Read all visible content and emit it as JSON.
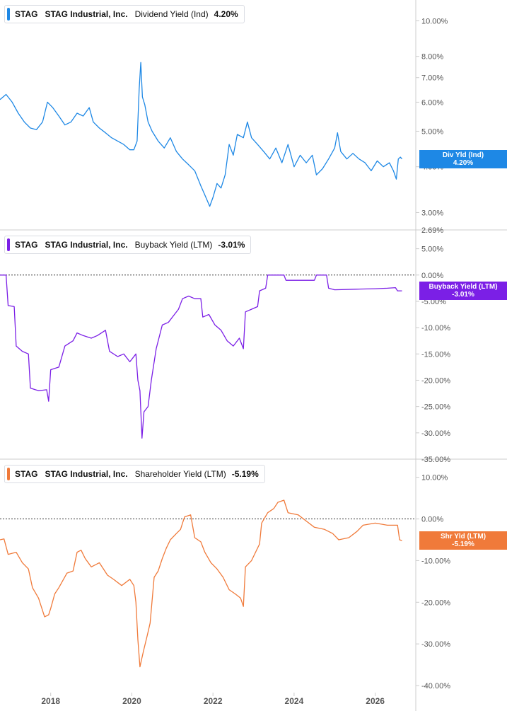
{
  "colors": {
    "dividend": "#1e88e5",
    "buyback": "#7b1fe6",
    "shareholder": "#f07a3a",
    "axis_text": "#555555",
    "divider": "#cccccc"
  },
  "x_axis": {
    "labels": [
      "2018",
      "2020",
      "2022",
      "2024",
      "2026"
    ],
    "range": [
      2016.75,
      2027.0
    ]
  },
  "chart_data": [
    {
      "type": "line",
      "name": "dividend",
      "ticker": "STAG",
      "company": "STAG Industrial, Inc.",
      "metric": "Dividend Yield (Ind)",
      "value_label": "4.20%",
      "flag_name": "Div Yld (Ind)",
      "flag_value": "4.20%",
      "scale": "log",
      "ylim": [
        2.69,
        11.0
      ],
      "y_ticks": [
        {
          "v": 10.0,
          "label": "10.00%"
        },
        {
          "v": 8.0,
          "label": "8.00%"
        },
        {
          "v": 7.0,
          "label": "7.00%"
        },
        {
          "v": 6.0,
          "label": "6.00%"
        },
        {
          "v": 5.0,
          "label": "5.00%"
        },
        {
          "v": 4.0,
          "label": "4.00%"
        },
        {
          "v": 3.0,
          "label": "3.00%"
        },
        {
          "v": 2.69,
          "label": "2.69%"
        }
      ],
      "points": [
        [
          2016.75,
          6.1
        ],
        [
          2016.9,
          6.3
        ],
        [
          2017.05,
          6.0
        ],
        [
          2017.2,
          5.6
        ],
        [
          2017.35,
          5.3
        ],
        [
          2017.5,
          5.1
        ],
        [
          2017.65,
          5.05
        ],
        [
          2017.8,
          5.3
        ],
        [
          2017.92,
          6.0
        ],
        [
          2018.05,
          5.8
        ],
        [
          2018.2,
          5.5
        ],
        [
          2018.35,
          5.2
        ],
        [
          2018.5,
          5.3
        ],
        [
          2018.65,
          5.6
        ],
        [
          2018.8,
          5.5
        ],
        [
          2018.95,
          5.8
        ],
        [
          2019.05,
          5.3
        ],
        [
          2019.2,
          5.1
        ],
        [
          2019.35,
          4.95
        ],
        [
          2019.5,
          4.8
        ],
        [
          2019.65,
          4.7
        ],
        [
          2019.8,
          4.6
        ],
        [
          2019.95,
          4.45
        ],
        [
          2020.05,
          4.45
        ],
        [
          2020.13,
          4.7
        ],
        [
          2020.18,
          6.5
        ],
        [
          2020.22,
          7.7
        ],
        [
          2020.26,
          6.2
        ],
        [
          2020.32,
          5.9
        ],
        [
          2020.4,
          5.3
        ],
        [
          2020.5,
          5.0
        ],
        [
          2020.65,
          4.7
        ],
        [
          2020.8,
          4.5
        ],
        [
          2020.95,
          4.8
        ],
        [
          2021.1,
          4.4
        ],
        [
          2021.25,
          4.2
        ],
        [
          2021.4,
          4.05
        ],
        [
          2021.55,
          3.9
        ],
        [
          2021.7,
          3.55
        ],
        [
          2021.8,
          3.35
        ],
        [
          2021.92,
          3.12
        ],
        [
          2022.0,
          3.3
        ],
        [
          2022.1,
          3.6
        ],
        [
          2022.2,
          3.5
        ],
        [
          2022.3,
          3.8
        ],
        [
          2022.4,
          4.6
        ],
        [
          2022.5,
          4.3
        ],
        [
          2022.6,
          4.9
        ],
        [
          2022.75,
          4.8
        ],
        [
          2022.85,
          5.3
        ],
        [
          2022.95,
          4.8
        ],
        [
          2023.1,
          4.6
        ],
        [
          2023.25,
          4.4
        ],
        [
          2023.4,
          4.2
        ],
        [
          2023.55,
          4.5
        ],
        [
          2023.7,
          4.1
        ],
        [
          2023.85,
          4.6
        ],
        [
          2024.0,
          4.0
        ],
        [
          2024.15,
          4.3
        ],
        [
          2024.3,
          4.1
        ],
        [
          2024.45,
          4.3
        ],
        [
          2024.55,
          3.8
        ],
        [
          2024.7,
          3.95
        ],
        [
          2024.85,
          4.2
        ],
        [
          2025.0,
          4.5
        ],
        [
          2025.07,
          4.95
        ],
        [
          2025.15,
          4.4
        ],
        [
          2025.3,
          4.2
        ],
        [
          2025.45,
          4.35
        ],
        [
          2025.6,
          4.2
        ],
        [
          2025.75,
          4.1
        ],
        [
          2025.9,
          3.9
        ],
        [
          2026.05,
          4.15
        ],
        [
          2026.2,
          4.0
        ],
        [
          2026.35,
          4.1
        ],
        [
          2026.45,
          3.9
        ],
        [
          2026.52,
          3.7
        ],
        [
          2026.57,
          4.2
        ],
        [
          2026.62,
          4.25
        ],
        [
          2026.66,
          4.2
        ]
      ]
    },
    {
      "type": "line",
      "name": "buyback",
      "ticker": "STAG",
      "company": "STAG Industrial, Inc.",
      "metric": "Buyback Yield (LTM)",
      "value_label": "-3.01%",
      "flag_name": "Buyback Yield (LTM)",
      "flag_value": "-3.01%",
      "scale": "linear",
      "ylim": [
        -35.0,
        7.5
      ],
      "zero_line": true,
      "y_ticks": [
        {
          "v": 5.0,
          "label": "5.00%"
        },
        {
          "v": 0.0,
          "label": "0.00%"
        },
        {
          "v": -5.0,
          "label": "-5.00%"
        },
        {
          "v": -10.0,
          "label": "-10.00%"
        },
        {
          "v": -15.0,
          "label": "-15.00%"
        },
        {
          "v": -20.0,
          "label": "-20.00%"
        },
        {
          "v": -25.0,
          "label": "-25.00%"
        },
        {
          "v": -30.0,
          "label": "-30.00%"
        },
        {
          "v": -35.0,
          "label": "-35.00%"
        }
      ],
      "points": [
        [
          2016.75,
          0.0
        ],
        [
          2016.9,
          0.0
        ],
        [
          2016.95,
          -5.8
        ],
        [
          2017.1,
          -6.0
        ],
        [
          2017.15,
          -13.5
        ],
        [
          2017.3,
          -14.5
        ],
        [
          2017.45,
          -15.0
        ],
        [
          2017.5,
          -21.5
        ],
        [
          2017.7,
          -22.0
        ],
        [
          2017.9,
          -21.8
        ],
        [
          2017.95,
          -24.0
        ],
        [
          2018.0,
          -18.0
        ],
        [
          2018.2,
          -17.5
        ],
        [
          2018.35,
          -13.5
        ],
        [
          2018.55,
          -12.5
        ],
        [
          2018.65,
          -11.0
        ],
        [
          2018.8,
          -11.5
        ],
        [
          2019.0,
          -12.0
        ],
        [
          2019.15,
          -11.5
        ],
        [
          2019.35,
          -10.5
        ],
        [
          2019.45,
          -14.5
        ],
        [
          2019.65,
          -15.5
        ],
        [
          2019.8,
          -15.0
        ],
        [
          2019.95,
          -16.5
        ],
        [
          2020.1,
          -15.0
        ],
        [
          2020.15,
          -20.0
        ],
        [
          2020.2,
          -22.0
        ],
        [
          2020.25,
          -31.0
        ],
        [
          2020.3,
          -26.0
        ],
        [
          2020.4,
          -25.0
        ],
        [
          2020.48,
          -20.0
        ],
        [
          2020.6,
          -14.0
        ],
        [
          2020.75,
          -9.5
        ],
        [
          2020.9,
          -9.0
        ],
        [
          2021.05,
          -7.5
        ],
        [
          2021.15,
          -6.5
        ],
        [
          2021.25,
          -4.5
        ],
        [
          2021.4,
          -4.0
        ],
        [
          2021.55,
          -4.5
        ],
        [
          2021.7,
          -4.5
        ],
        [
          2021.75,
          -8.0
        ],
        [
          2021.9,
          -7.5
        ],
        [
          2022.05,
          -9.5
        ],
        [
          2022.2,
          -10.5
        ],
        [
          2022.35,
          -12.5
        ],
        [
          2022.5,
          -13.5
        ],
        [
          2022.65,
          -12.0
        ],
        [
          2022.75,
          -14.0
        ],
        [
          2022.8,
          -7.0
        ],
        [
          2022.95,
          -6.5
        ],
        [
          2023.1,
          -6.0
        ],
        [
          2023.15,
          -3.0
        ],
        [
          2023.3,
          -2.5
        ],
        [
          2023.35,
          0.0
        ],
        [
          2023.6,
          0.0
        ],
        [
          2023.75,
          0.0
        ],
        [
          2023.8,
          -1.0
        ],
        [
          2024.2,
          -1.0
        ],
        [
          2024.5,
          -1.0
        ],
        [
          2024.55,
          0.0
        ],
        [
          2024.8,
          0.0
        ],
        [
          2024.85,
          -2.5
        ],
        [
          2025.0,
          -2.8
        ],
        [
          2025.5,
          -2.7
        ],
        [
          2026.0,
          -2.6
        ],
        [
          2026.3,
          -2.5
        ],
        [
          2026.5,
          -2.4
        ],
        [
          2026.55,
          -3.0
        ],
        [
          2026.66,
          -3.01
        ]
      ]
    },
    {
      "type": "line",
      "name": "shareholder",
      "ticker": "STAG",
      "company": "STAG Industrial, Inc.",
      "metric": "Shareholder Yield (LTM)",
      "value_label": "-5.19%",
      "flag_name": "Shr Yld (LTM)",
      "flag_value": "-5.19%",
      "scale": "linear",
      "ylim": [
        -40.5,
        13.0
      ],
      "zero_line": true,
      "y_ticks": [
        {
          "v": 10.0,
          "label": "10.00%"
        },
        {
          "v": 0.0,
          "label": "0.00%"
        },
        {
          "v": -10.0,
          "label": "-10.00%"
        },
        {
          "v": -20.0,
          "label": "-20.00%"
        },
        {
          "v": -30.0,
          "label": "-30.00%"
        },
        {
          "v": -40.0,
          "label": "-40.00%"
        }
      ],
      "points": [
        [
          2016.75,
          -5.0
        ],
        [
          2016.85,
          -4.8
        ],
        [
          2016.95,
          -8.5
        ],
        [
          2017.15,
          -8.0
        ],
        [
          2017.3,
          -10.5
        ],
        [
          2017.45,
          -12.0
        ],
        [
          2017.55,
          -16.5
        ],
        [
          2017.7,
          -19.0
        ],
        [
          2017.8,
          -22.0
        ],
        [
          2017.85,
          -23.5
        ],
        [
          2017.95,
          -23.0
        ],
        [
          2018.0,
          -21.5
        ],
        [
          2018.1,
          -18.0
        ],
        [
          2018.2,
          -16.5
        ],
        [
          2018.4,
          -13.0
        ],
        [
          2018.55,
          -12.5
        ],
        [
          2018.65,
          -8.0
        ],
        [
          2018.75,
          -7.5
        ],
        [
          2018.85,
          -9.5
        ],
        [
          2019.0,
          -11.5
        ],
        [
          2019.2,
          -10.5
        ],
        [
          2019.4,
          -13.5
        ],
        [
          2019.55,
          -14.5
        ],
        [
          2019.75,
          -16.0
        ],
        [
          2019.95,
          -14.5
        ],
        [
          2020.05,
          -16.0
        ],
        [
          2020.1,
          -20.0
        ],
        [
          2020.15,
          -29.0
        ],
        [
          2020.2,
          -35.5
        ],
        [
          2020.28,
          -32.0
        ],
        [
          2020.38,
          -28.0
        ],
        [
          2020.45,
          -25.0
        ],
        [
          2020.55,
          -14.0
        ],
        [
          2020.65,
          -12.5
        ],
        [
          2020.75,
          -9.5
        ],
        [
          2020.85,
          -7.0
        ],
        [
          2020.95,
          -5.0
        ],
        [
          2021.1,
          -3.5
        ],
        [
          2021.2,
          -2.5
        ],
        [
          2021.3,
          0.5
        ],
        [
          2021.45,
          1.0
        ],
        [
          2021.55,
          -4.5
        ],
        [
          2021.7,
          -5.5
        ],
        [
          2021.8,
          -8.0
        ],
        [
          2021.95,
          -10.5
        ],
        [
          2022.1,
          -12.0
        ],
        [
          2022.25,
          -14.0
        ],
        [
          2022.4,
          -17.0
        ],
        [
          2022.55,
          -18.0
        ],
        [
          2022.68,
          -19.0
        ],
        [
          2022.75,
          -21.0
        ],
        [
          2022.8,
          -11.5
        ],
        [
          2022.95,
          -10.0
        ],
        [
          2023.05,
          -8.0
        ],
        [
          2023.15,
          -6.0
        ],
        [
          2023.2,
          -1.0
        ],
        [
          2023.35,
          1.5
        ],
        [
          2023.5,
          2.5
        ],
        [
          2023.6,
          4.0
        ],
        [
          2023.75,
          4.5
        ],
        [
          2023.85,
          1.5
        ],
        [
          2024.1,
          1.0
        ],
        [
          2024.3,
          -0.5
        ],
        [
          2024.5,
          -2.0
        ],
        [
          2024.75,
          -2.5
        ],
        [
          2024.95,
          -3.5
        ],
        [
          2025.1,
          -5.0
        ],
        [
          2025.35,
          -4.5
        ],
        [
          2025.55,
          -3.0
        ],
        [
          2025.7,
          -1.5
        ],
        [
          2026.0,
          -1.0
        ],
        [
          2026.3,
          -1.5
        ],
        [
          2026.55,
          -1.5
        ],
        [
          2026.6,
          -5.0
        ],
        [
          2026.66,
          -5.19
        ]
      ]
    }
  ]
}
